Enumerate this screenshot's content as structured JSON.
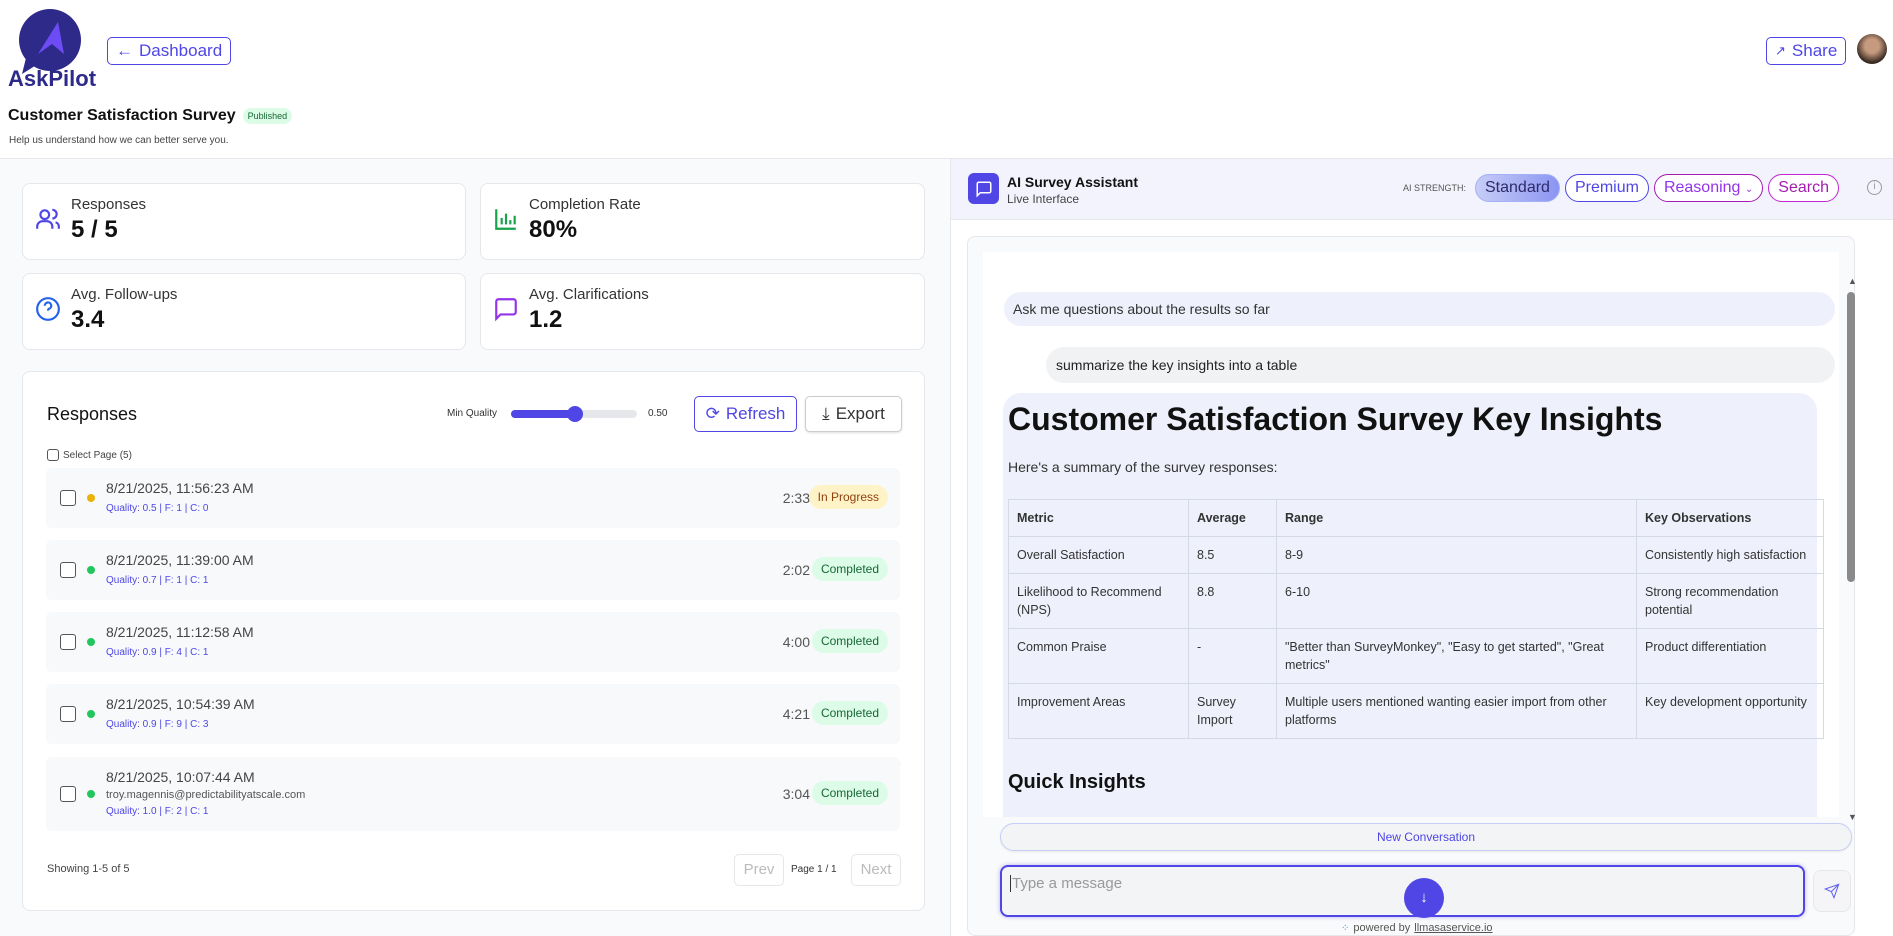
{
  "app": {
    "brand": "AskPilot",
    "back_label": "Dashboard",
    "share_label": "Share"
  },
  "survey": {
    "title": "Customer Satisfaction Survey",
    "status": "Published",
    "subtitle": "Help us understand how we can better serve you."
  },
  "stats": [
    {
      "label": "Responses",
      "value": "5 / 5",
      "icon": "users-icon"
    },
    {
      "label": "Completion Rate",
      "value": "80%",
      "icon": "bar-chart-icon"
    },
    {
      "label": "Avg. Follow-ups",
      "value": "3.4",
      "icon": "help-circle-icon"
    },
    {
      "label": "Avg. Clarifications",
      "value": "1.2",
      "icon": "message-square-icon"
    }
  ],
  "responses": {
    "title": "Responses",
    "min_quality_label": "Min Quality",
    "min_quality_value": "0.50",
    "min_quality": 0.5,
    "refresh_label": "Refresh",
    "export_label": "Export",
    "select_page_label": "Select Page (5)",
    "items": [
      {
        "datetime": "8/21/2025, 11:56:23 AM",
        "email": "",
        "meta": "Quality: 0.5 | F: 1 | C: 0",
        "duration": "2:33",
        "status": "In Progress"
      },
      {
        "datetime": "8/21/2025, 11:39:00 AM",
        "email": "",
        "meta": "Quality: 0.7 | F: 1 | C: 1",
        "duration": "2:02",
        "status": "Completed"
      },
      {
        "datetime": "8/21/2025, 11:12:58 AM",
        "email": "",
        "meta": "Quality: 0.9 | F: 4 | C: 1",
        "duration": "4:00",
        "status": "Completed"
      },
      {
        "datetime": "8/21/2025, 10:54:39 AM",
        "email": "",
        "meta": "Quality: 0.9 | F: 9 | C: 3",
        "duration": "4:21",
        "status": "Completed"
      },
      {
        "datetime": "8/21/2025, 10:07:44 AM",
        "email": "troy.magennis@predictabilityatscale.com",
        "meta": "Quality: 1.0 | F: 2 | C: 1",
        "duration": "3:04",
        "status": "Completed"
      }
    ],
    "showing": "Showing 1-5 of 5",
    "prev_label": "Prev",
    "next_label": "Next",
    "page_label": "Page 1 / 1"
  },
  "assistant": {
    "title": "AI Survey Assistant",
    "subtitle": "Live Interface",
    "strength_label": "AI STRENGTH:",
    "modes": [
      "Standard",
      "Premium",
      "Reasoning",
      "Search"
    ],
    "active_mode": "Standard",
    "intro": "Ask me questions about the results so far",
    "user_msg": "summarize the key insights into a table",
    "reply_title": "Customer Satisfaction Survey Key Insights",
    "reply_intro": "Here's a summary of the survey responses:",
    "table": {
      "headers": [
        "Metric",
        "Average",
        "Range",
        "Key Observations"
      ],
      "rows": [
        [
          "Overall Satisfaction",
          "8.5",
          "8-9",
          "Consistently high satisfaction"
        ],
        [
          "Likelihood to Recommend (NPS)",
          "8.8",
          "6-10",
          "Strong recommendation potential"
        ],
        [
          "Common Praise",
          "-",
          "\"Better than SurveyMonkey\", \"Easy to get started\", \"Great metrics\"",
          "Product differentiation"
        ],
        [
          "Improvement Areas",
          "Survey Import",
          "Multiple users mentioned wanting easier import from other platforms",
          "Key development opportunity"
        ]
      ]
    },
    "quick_insights": "Quick Insights",
    "new_conversation": "New Conversation",
    "input_placeholder": "Type a message",
    "powered_prefix": "powered by",
    "powered_link": "llmasaservice.io"
  },
  "colors": {
    "accent": "#4f46e5",
    "completed_bg": "#dcfce7",
    "in_progress_bg": "#fef3c7"
  }
}
